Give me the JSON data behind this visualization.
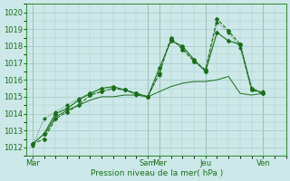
{
  "bg_color": "#cce8e8",
  "grid_color": "#aacccc",
  "line_color": "#1a6e1a",
  "xlabel": "Pression niveau de la mer( hPa )",
  "ylim": [
    1011.5,
    1020.5
  ],
  "yticks": [
    1012,
    1013,
    1014,
    1015,
    1016,
    1017,
    1018,
    1019,
    1020
  ],
  "xtick_labels": [
    "Mar",
    "Sam",
    "Mer",
    "Jeu",
    "Ven"
  ],
  "xtick_positions": [
    0,
    10,
    11,
    15,
    20
  ],
  "xlim": [
    -0.5,
    22
  ],
  "vline_positions": [
    0,
    10,
    11,
    15,
    20
  ],
  "series1_x": [
    0,
    1,
    2,
    3,
    4,
    5,
    6,
    7,
    8,
    9,
    10,
    11,
    12,
    13,
    14,
    15,
    16,
    17,
    18,
    19,
    20
  ],
  "series1_y": [
    1012.2,
    1012.5,
    1013.7,
    1014.1,
    1014.5,
    1015.1,
    1015.3,
    1015.5,
    1015.4,
    1015.2,
    1015.0,
    1016.4,
    1018.5,
    1017.8,
    1017.1,
    1016.6,
    1019.6,
    1018.9,
    1018.1,
    1015.4,
    1015.2
  ],
  "series2_x": [
    0,
    1,
    2,
    3,
    4,
    5,
    6,
    7,
    8,
    9,
    10,
    11,
    12,
    13,
    14,
    15,
    16,
    17,
    18,
    19,
    20
  ],
  "series2_y": [
    1012.2,
    1012.8,
    1014.0,
    1014.3,
    1014.8,
    1015.2,
    1015.5,
    1015.6,
    1015.4,
    1015.2,
    1015.0,
    1016.7,
    1018.3,
    1018.0,
    1017.2,
    1016.5,
    1018.8,
    1018.3,
    1018.1,
    1015.5,
    1015.2
  ],
  "series3_x": [
    1,
    2,
    3,
    4,
    5,
    6,
    7,
    8,
    9,
    10,
    11,
    12,
    13,
    14,
    15,
    16,
    17,
    18,
    19,
    20
  ],
  "series3_y": [
    1012.7,
    1013.8,
    1014.2,
    1014.5,
    1014.8,
    1015.0,
    1015.0,
    1015.1,
    1015.1,
    1015.0,
    1015.3,
    1015.6,
    1015.8,
    1015.9,
    1015.9,
    1016.0,
    1016.2,
    1015.2,
    1015.1,
    1015.2
  ],
  "series4_x": [
    0,
    1,
    2,
    3,
    4,
    5,
    6,
    7,
    8,
    9,
    10,
    11,
    12,
    13,
    14,
    15,
    16,
    17,
    18,
    19,
    20
  ],
  "series4_y": [
    1012.1,
    1013.7,
    1014.1,
    1014.5,
    1014.9,
    1015.2,
    1015.3,
    1015.5,
    1015.4,
    1015.1,
    1015.0,
    1016.3,
    1018.4,
    1017.9,
    1017.1,
    1016.5,
    1019.4,
    1018.8,
    1017.9,
    1015.4,
    1015.3
  ]
}
